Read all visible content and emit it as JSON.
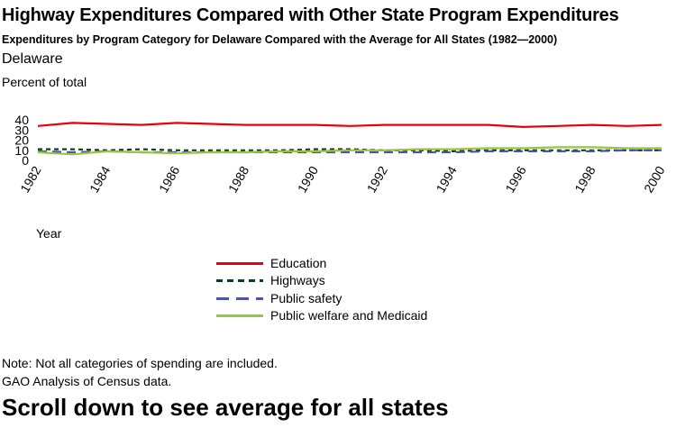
{
  "title": "Highway Expenditures Compared with Other State Program Expenditures",
  "subtitle": "Expenditures by Program Category for Delaware Compared with the Average for All States (1982—2000)",
  "state": "Delaware",
  "note": "Note: Not all categories of spending are included.",
  "source": "GAO Analysis of Census data.",
  "scroll_hint": "Scroll down to see average for all states",
  "chart_data": {
    "type": "line",
    "ylabel": "Percent of total",
    "xlabel": "Year",
    "xlim": [
      1982,
      2000
    ],
    "ylim": [
      0,
      40
    ],
    "yticks": [
      0,
      10,
      20,
      30,
      40
    ],
    "xticks": [
      1982,
      1984,
      1986,
      1988,
      1990,
      1992,
      1994,
      1996,
      1998,
      2000
    ],
    "grid": false,
    "legend_position": "bottom",
    "x": [
      1982,
      1983,
      1984,
      1985,
      1986,
      1987,
      1988,
      1989,
      1990,
      1991,
      1992,
      1993,
      1994,
      1995,
      1996,
      1997,
      1998,
      1999,
      2000
    ],
    "series": [
      {
        "name": "Education",
        "color": "#e8000b",
        "dash": "solid",
        "values": [
          34,
          37,
          36,
          35,
          37,
          36,
          35,
          35,
          35,
          34,
          35,
          35,
          35,
          35,
          33,
          34,
          35,
          34,
          35
        ]
      },
      {
        "name": "Highways",
        "color": "#0b3d1e",
        "dash": "dotted",
        "values": [
          11,
          11,
          10,
          11,
          10,
          10,
          10,
          10,
          11,
          11,
          10,
          10,
          9,
          10,
          10,
          10,
          10,
          10,
          10
        ]
      },
      {
        "name": "Public safety",
        "color": "#4a55a8",
        "dash": "dashed",
        "values": [
          9,
          8,
          9,
          8,
          8,
          8,
          8,
          8,
          8,
          8,
          8,
          8,
          8,
          9,
          9,
          9,
          9,
          10,
          10
        ]
      },
      {
        "name": "Public welfare and Medicaid",
        "color": "#9ac43c",
        "dash": "solid",
        "values": [
          8,
          6,
          9,
          8,
          7,
          8,
          8,
          9,
          9,
          10,
          10,
          11,
          11,
          12,
          12,
          13,
          13,
          12,
          12
        ]
      }
    ]
  }
}
